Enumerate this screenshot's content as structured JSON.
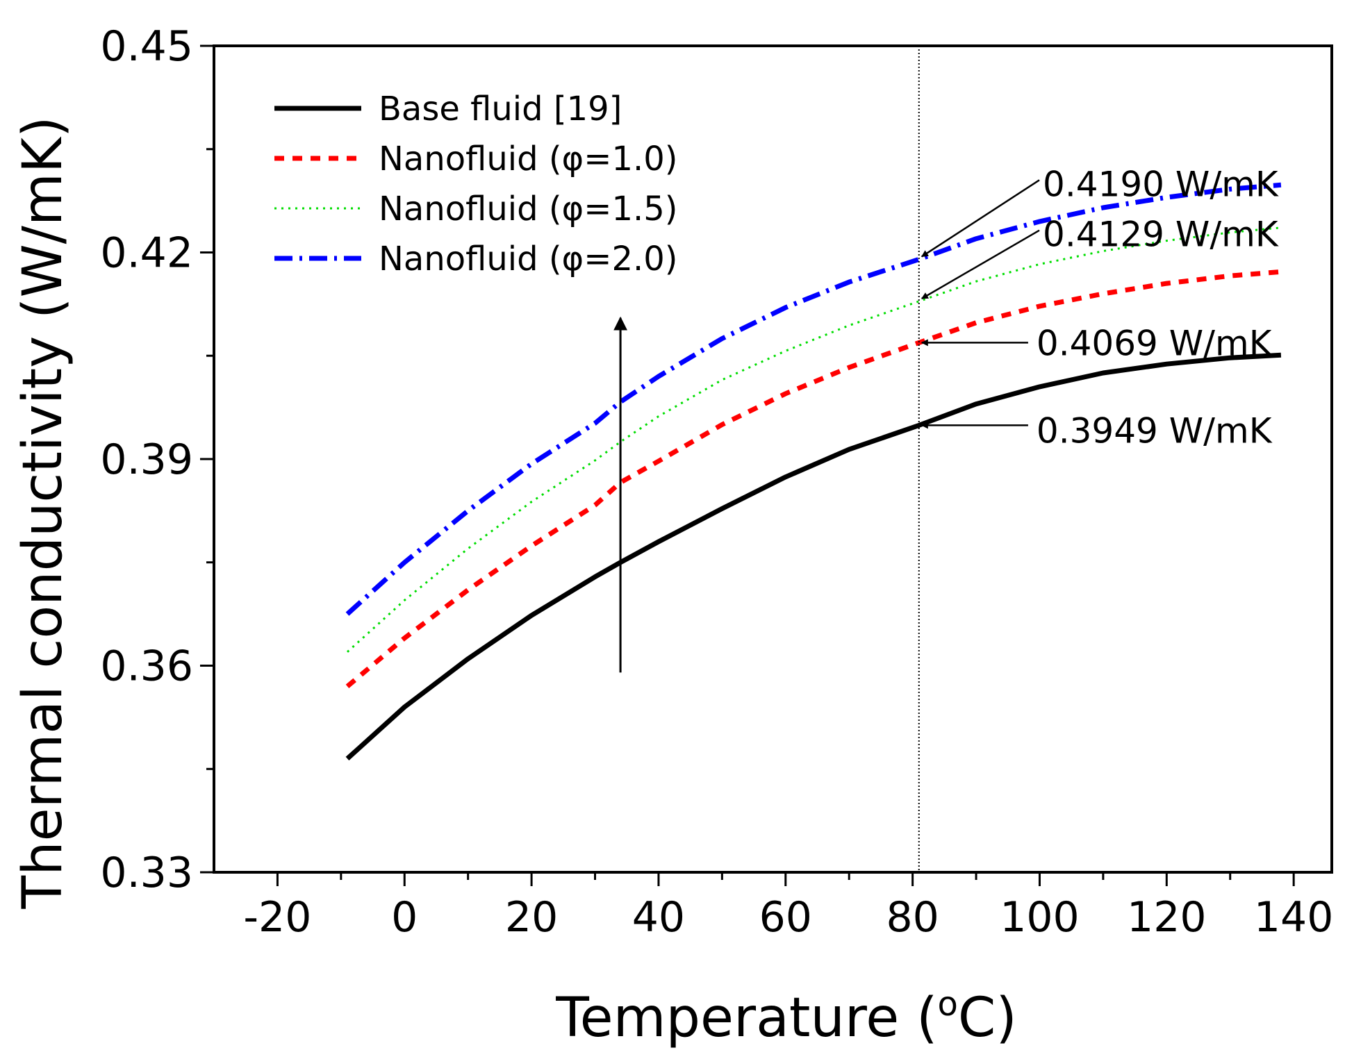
{
  "chart_data": {
    "type": "line",
    "title": "",
    "xlabel": "Temperature (",
    "xlabel_unit_sup": "o",
    "xlabel_unit_tail": "C)",
    "ylabel": "Thermal conductivity (W/mK)",
    "xlim": [
      -30,
      146
    ],
    "ylim": [
      0.33,
      0.45
    ],
    "xticks": [
      -20,
      0,
      20,
      40,
      60,
      80,
      100,
      120,
      140
    ],
    "xtick_labels": [
      "-20",
      "0",
      "20",
      "40",
      "60",
      "80",
      "100",
      "120",
      "140"
    ],
    "xminor": [
      -10,
      10,
      30,
      50,
      70,
      90,
      110,
      130
    ],
    "yticks": [
      0.33,
      0.36,
      0.39,
      0.42,
      0.45
    ],
    "ytick_labels": [
      "0.33",
      "0.36",
      "0.39",
      "0.42",
      "0.45"
    ],
    "yminor": [
      0.345,
      0.375,
      0.405,
      0.435
    ],
    "grid": false,
    "legend_position": "top-left",
    "x": [
      -9,
      0,
      10,
      20,
      30,
      34,
      40,
      50,
      60,
      70,
      81,
      90,
      100,
      110,
      120,
      130,
      138
    ],
    "series": [
      {
        "name": "Base fluid [19]",
        "color": "#000000",
        "style": "solid",
        "values": [
          0.3465,
          0.354,
          0.361,
          0.3673,
          0.3729,
          0.375,
          0.378,
          0.3828,
          0.3874,
          0.3914,
          0.3949,
          0.398,
          0.4005,
          0.4025,
          0.4038,
          0.4047,
          0.4051
        ]
      },
      {
        "name": "Nanofluid (φ=1.0)",
        "color": "#ff0000",
        "style": "dash",
        "values": [
          0.357,
          0.364,
          0.371,
          0.3774,
          0.3833,
          0.3866,
          0.3897,
          0.395,
          0.3995,
          0.4033,
          0.4069,
          0.4098,
          0.4122,
          0.414,
          0.4155,
          0.4166,
          0.4172
        ]
      },
      {
        "name": "Nanofluid (φ=1.5)",
        "color": "#00dd00",
        "style": "dot",
        "values": [
          0.362,
          0.3695,
          0.377,
          0.3838,
          0.3898,
          0.3925,
          0.3962,
          0.4015,
          0.4057,
          0.4094,
          0.4129,
          0.4158,
          0.4183,
          0.4202,
          0.4217,
          0.4229,
          0.4236
        ]
      },
      {
        "name": "Nanofluid (φ=2.0)",
        "color": "#0000ff",
        "style": "dashdot",
        "values": [
          0.3675,
          0.375,
          0.3825,
          0.3893,
          0.3952,
          0.3983,
          0.402,
          0.4075,
          0.412,
          0.4157,
          0.419,
          0.422,
          0.4245,
          0.4265,
          0.428,
          0.4292,
          0.4298
        ]
      }
    ],
    "reference_line": {
      "x": 81,
      "style": "dotted"
    },
    "trend_arrow": {
      "x": 34,
      "from": 0.359,
      "to": 0.4105
    },
    "annotations": [
      {
        "text": "0.4190 W/mK",
        "point": [
          81,
          0.419
        ],
        "label_at": [
          100.5,
          0.43
        ],
        "direction": "diagonal"
      },
      {
        "text": "0.4129 W/mK",
        "point": [
          81,
          0.4129
        ],
        "label_at": [
          100.5,
          0.4227
        ],
        "direction": "diagonal"
      },
      {
        "text": "0.4069 W/mK",
        "point": [
          81,
          0.4069
        ],
        "label_at": [
          99.5,
          0.4069
        ],
        "direction": "horizontal"
      },
      {
        "text": "0.3949 W/mK",
        "point": [
          81,
          0.3949
        ],
        "label_at": [
          99.5,
          0.3942
        ],
        "direction": "horizontal"
      }
    ]
  }
}
